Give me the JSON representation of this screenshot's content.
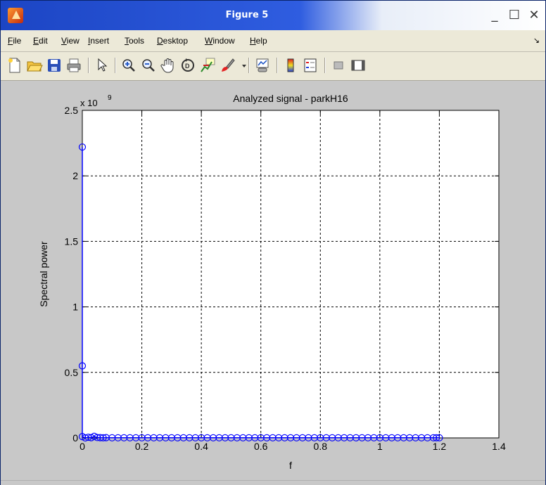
{
  "window": {
    "title": "Figure 5",
    "minimize_label": "_",
    "maximize_label": "☐",
    "close_label": "✕"
  },
  "menu": {
    "items": [
      {
        "label": "File",
        "key": "F",
        "rest": "ile"
      },
      {
        "label": "Edit",
        "key": "E",
        "rest": "dit"
      },
      {
        "label": "View",
        "key": "V",
        "rest": "iew"
      },
      {
        "label": "Insert",
        "key": "I",
        "rest": "nsert"
      },
      {
        "label": "Tools",
        "key": "T",
        "rest": "ools"
      },
      {
        "label": "Desktop",
        "key": "D",
        "rest": "esktop"
      },
      {
        "label": "Window",
        "key": "W",
        "rest": "indow"
      },
      {
        "label": "Help",
        "key": "H",
        "rest": "elp"
      }
    ],
    "overflow_icon": "dock-arrow-icon"
  },
  "toolbar": {
    "icons": [
      "new-figure-icon",
      "open-file-icon",
      "save-figure-icon",
      "print-figure-icon",
      "edit-plot-arrow-icon",
      "zoom-in-icon",
      "zoom-out-icon",
      "pan-hand-icon",
      "rotate-3d-icon",
      "data-cursor-icon",
      "brush-icon",
      "brush-dropdown-icon",
      "link-plot-icon",
      "insert-colorbar-icon",
      "insert-legend-icon",
      "hide-plot-tools-icon",
      "show-plot-tools-icon"
    ]
  },
  "colors": {
    "plot_line": "#0000ff",
    "axes_background": "#ffffff",
    "figure_background": "#c8c8c8"
  },
  "chart_data": {
    "type": "line",
    "title": "Analyzed signal - parkH16",
    "xlabel": "f",
    "ylabel": "Spectral power",
    "y_exponent_label": "x 10",
    "y_exponent_power": "9",
    "xlim": [
      0,
      1.4
    ],
    "ylim": [
      0,
      2.5
    ],
    "y_scale_factor": 1000000000,
    "xticks": [
      0,
      0.2,
      0.4,
      0.6,
      0.8,
      1,
      1.2,
      1.4
    ],
    "xtick_labels": [
      "0",
      "0.2",
      "0.4",
      "0.6",
      "0.8",
      "1",
      "1.2",
      "1.4"
    ],
    "yticks": [
      0,
      0.5,
      1,
      1.5,
      2,
      2.5
    ],
    "ytick_labels": [
      "0",
      "0.5",
      "1",
      "1.5",
      "2",
      "2.5"
    ],
    "grid": true,
    "grid_style": "dashed",
    "marker": "circle",
    "series": [
      {
        "x": [
          0.0,
          0.0,
          0.0,
          0.01,
          0.02,
          0.03,
          0.04,
          0.05,
          0.06,
          0.07,
          0.08,
          0.1,
          0.12,
          0.14,
          0.16,
          0.18,
          0.2,
          0.22,
          0.24,
          0.26,
          0.28,
          0.3,
          0.32,
          0.34,
          0.36,
          0.38,
          0.4,
          0.42,
          0.44,
          0.46,
          0.48,
          0.5,
          0.52,
          0.54,
          0.56,
          0.58,
          0.6,
          0.62,
          0.64,
          0.66,
          0.68,
          0.7,
          0.72,
          0.74,
          0.76,
          0.78,
          0.8,
          0.82,
          0.84,
          0.86,
          0.88,
          0.9,
          0.92,
          0.94,
          0.96,
          0.98,
          1.0,
          1.02,
          1.04,
          1.06,
          1.08,
          1.1,
          1.12,
          1.14,
          1.16,
          1.18,
          1.19,
          1.2
        ],
        "y": [
          2.22,
          0.55,
          0.01,
          0.0,
          0.005,
          0.002,
          0.012,
          0.003,
          0.002,
          0.001,
          0.002,
          0.001,
          0.001,
          0.001,
          0.001,
          0.001,
          0.001,
          0.001,
          0.001,
          0.001,
          0.001,
          0.001,
          0.001,
          0.001,
          0.001,
          0.001,
          0.001,
          0.001,
          0.001,
          0.001,
          0.001,
          0.001,
          0.001,
          0.001,
          0.001,
          0.001,
          0.001,
          0.001,
          0.001,
          0.001,
          0.001,
          0.001,
          0.001,
          0.001,
          0.001,
          0.001,
          0.001,
          0.001,
          0.001,
          0.001,
          0.001,
          0.001,
          0.001,
          0.001,
          0.001,
          0.001,
          0.001,
          0.001,
          0.001,
          0.001,
          0.001,
          0.001,
          0.001,
          0.001,
          0.001,
          0.001,
          0.001,
          0.001
        ]
      }
    ]
  }
}
